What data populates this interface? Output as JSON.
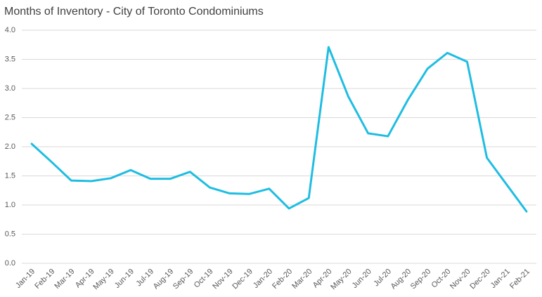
{
  "chart_data": {
    "type": "line",
    "title": "Months of Inventory - City of Toronto Condominiums",
    "categories": [
      "Jan-19",
      "Feb-19",
      "Mar-19",
      "Apr-19",
      "May-19",
      "Jun-19",
      "Jul-19",
      "Aug-19",
      "Sep-19",
      "Oct-19",
      "Nov-19",
      "Dec-19",
      "Jan-20",
      "Feb-20",
      "Mar-20",
      "Apr-20",
      "May-20",
      "Jun-20",
      "Jul-20",
      "Aug-20",
      "Sep-20",
      "Oct-20",
      "Nov-20",
      "Dec-20",
      "Jan-21",
      "Feb-21"
    ],
    "values": [
      2.05,
      1.74,
      1.42,
      1.41,
      1.46,
      1.6,
      1.45,
      1.45,
      1.57,
      1.3,
      1.2,
      1.19,
      1.28,
      0.94,
      1.12,
      3.71,
      2.86,
      2.23,
      2.18,
      2.8,
      3.34,
      3.61,
      3.46,
      1.81,
      1.35,
      0.89
    ],
    "color": "#1fbde2",
    "ylim": [
      0,
      4
    ],
    "yticks": [
      {
        "value": 0,
        "label": "0.0"
      },
      0.5,
      {
        "value": 1,
        "label": "1.0"
      },
      1.5,
      {
        "value": 2,
        "label": "2.0"
      },
      2.5,
      {
        "value": 3,
        "label": "3.0"
      },
      3.5,
      {
        "value": 4,
        "label": "4.0"
      }
    ],
    "grid": true
  }
}
